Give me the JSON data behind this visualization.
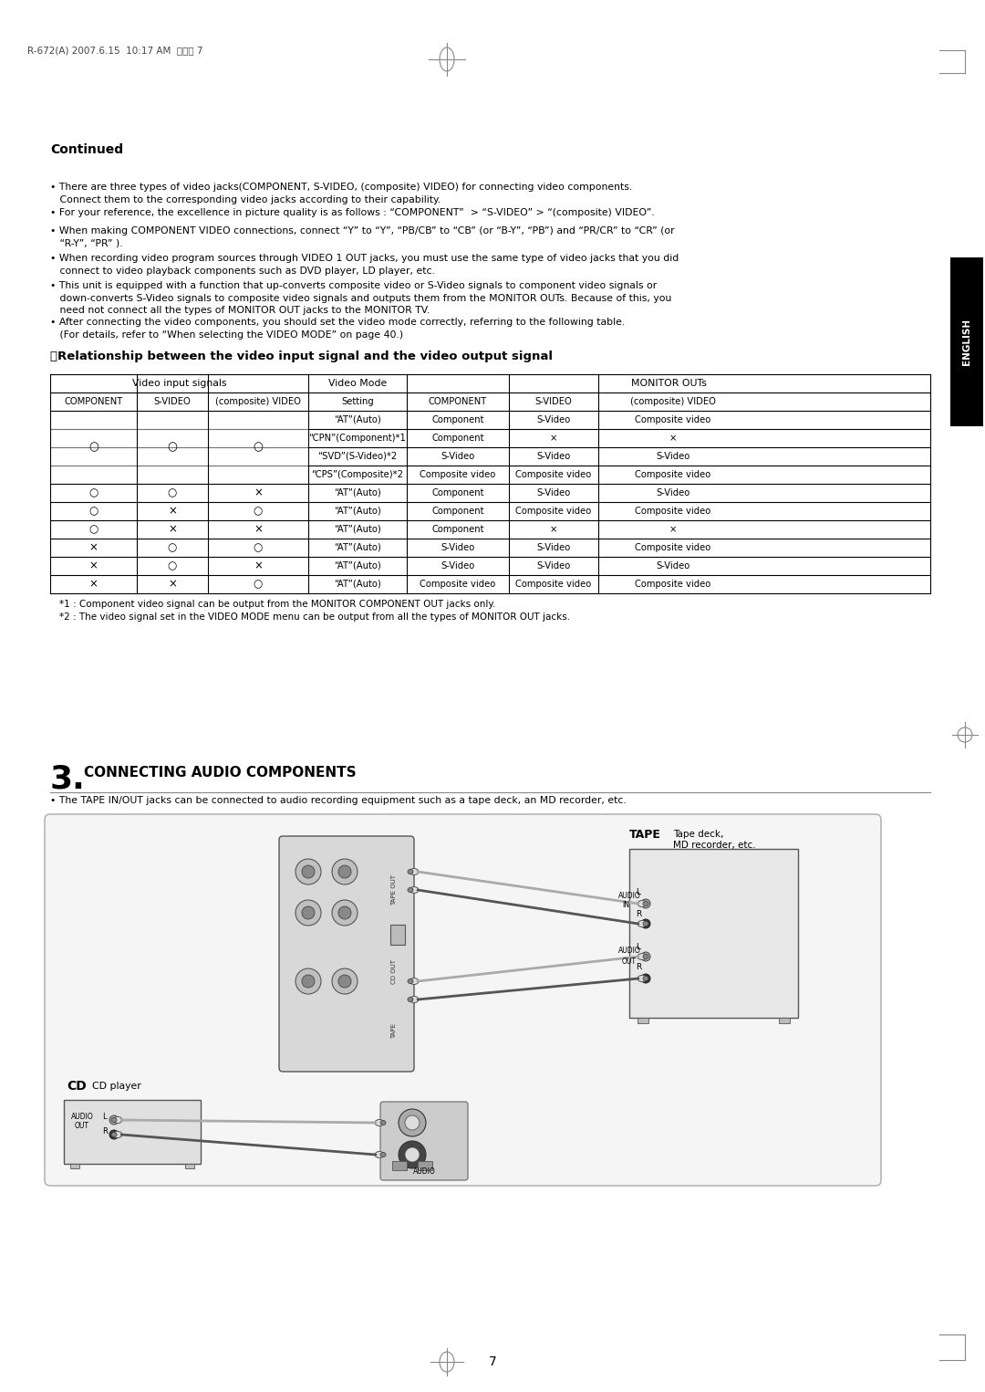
{
  "page_header": "R-672(A) 2007.6.15  10:17 AM  페이지 7",
  "page_number": "7",
  "continued_title": "Continued",
  "table_section_title": "樿Relationship between the video input signal and the video output signal",
  "table_data": [
    [
      "",
      "",
      "",
      "“AT”(Auto)",
      "Component",
      "S-Video",
      "Composite video"
    ],
    [
      "○",
      "○",
      "○",
      "“CPN”(Component)*1",
      "Component",
      "×",
      "×"
    ],
    [
      "",
      "",
      "",
      "“SVD”(S-Video)*2",
      "S-Video",
      "S-Video",
      "S-Video"
    ],
    [
      "",
      "",
      "",
      "“CPS”(Composite)*2",
      "Composite video",
      "Composite video",
      "Composite video"
    ],
    [
      "○",
      "○",
      "×",
      "“AT”(Auto)",
      "Component",
      "S-Video",
      "S-Video"
    ],
    [
      "○",
      "×",
      "○",
      "“AT”(Auto)",
      "Component",
      "Composite video",
      "Composite video"
    ],
    [
      "○",
      "×",
      "×",
      "“AT”(Auto)",
      "Component",
      "×",
      "×"
    ],
    [
      "×",
      "○",
      "○",
      "“AT”(Auto)",
      "S-Video",
      "S-Video",
      "Composite video"
    ],
    [
      "×",
      "○",
      "×",
      "“AT”(Auto)",
      "S-Video",
      "S-Video",
      "S-Video"
    ],
    [
      "×",
      "×",
      "○",
      "“AT”(Auto)",
      "Composite video",
      "Composite video",
      "Composite video"
    ]
  ],
  "footnote1": "*1 : Component video signal can be output from the MONITOR COMPONENT OUT jacks only.",
  "footnote2": "*2 : The video signal set in the VIDEO MODE menu can be output from all the types of MONITOR OUT jacks.",
  "section3_subtitle": "CONNECTING AUDIO COMPONENTS",
  "section3_bullet": "• The TAPE IN/OUT jacks can be connected to audio recording equipment such as a tape deck, an MD recorder, etc.",
  "english_tab": "ENGLISH",
  "bg_color": "#ffffff",
  "text_color": "#000000"
}
